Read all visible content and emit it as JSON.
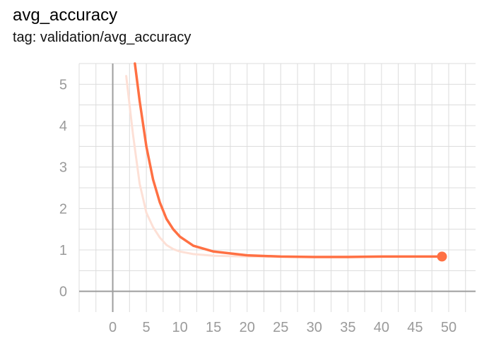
{
  "header": {
    "title": "avg_accuracy",
    "subtitle": "tag: validation/avg_accuracy"
  },
  "chart_data": {
    "type": "line",
    "title": "avg_accuracy",
    "subtitle": "tag: validation/avg_accuracy",
    "xlabel": "",
    "ylabel": "",
    "xlim": [
      -5,
      54
    ],
    "ylim": [
      -0.5,
      5.5
    ],
    "x_ticks": [
      0,
      5,
      10,
      15,
      20,
      25,
      30,
      35,
      40,
      45,
      50
    ],
    "y_ticks": [
      0,
      1,
      2,
      3,
      4,
      5
    ],
    "grid": true,
    "series": [
      {
        "role": "raw",
        "color": "#fde0d6",
        "x": [
          2,
          3,
          4,
          5,
          6,
          7,
          8,
          9,
          10,
          12,
          15,
          20,
          25,
          30,
          35,
          40,
          45,
          49
        ],
        "y": [
          5.2,
          3.8,
          2.6,
          1.9,
          1.55,
          1.3,
          1.12,
          1.02,
          0.96,
          0.9,
          0.86,
          0.84,
          0.84,
          0.83,
          0.84,
          0.84,
          0.84,
          0.84
        ]
      },
      {
        "role": "smoothed",
        "color": "#ff7043",
        "x": [
          3.3,
          4,
          5,
          6,
          7,
          8,
          9,
          10,
          12,
          15,
          20,
          25,
          30,
          35,
          40,
          45,
          49
        ],
        "y": [
          5.5,
          4.6,
          3.5,
          2.7,
          2.15,
          1.75,
          1.5,
          1.32,
          1.1,
          0.96,
          0.87,
          0.84,
          0.83,
          0.83,
          0.84,
          0.84,
          0.84
        ]
      }
    ],
    "end_marker": {
      "x": 49,
      "y": 0.84,
      "color": "#ff7043"
    }
  }
}
